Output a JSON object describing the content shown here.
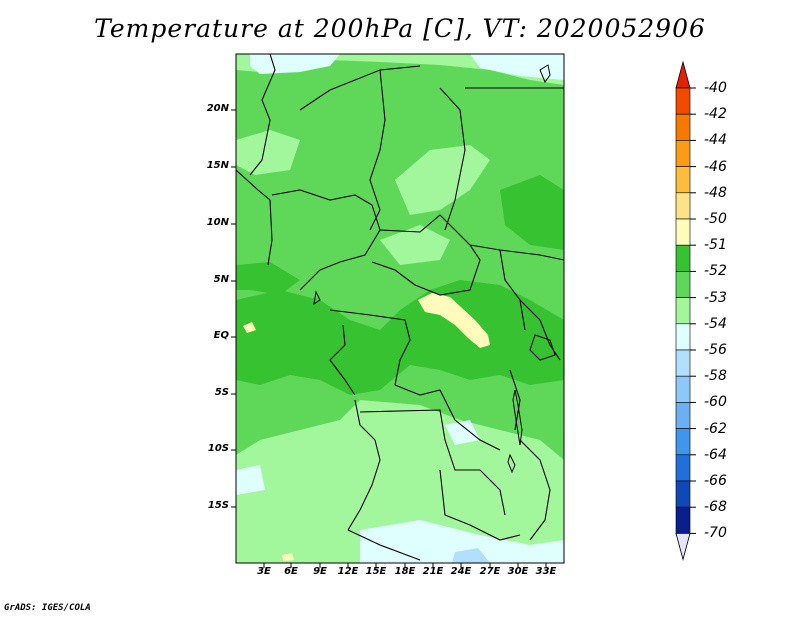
{
  "title": "Temperature at 200hPa [C], VT: 2020052906",
  "credit": "GrADS: IGES/COLA",
  "lat_labels": [
    "20N",
    "15N",
    "10N",
    "5N",
    "EQ",
    "5S",
    "10S",
    "15S"
  ],
  "lon_labels": [
    "3E",
    "6E",
    "9E",
    "12E",
    "15E",
    "18E",
    "21E",
    "24E",
    "27E",
    "30E",
    "33E"
  ],
  "colorbar": {
    "levels": [
      "-40",
      "-42",
      "-44",
      "-46",
      "-48",
      "-50",
      "-51",
      "-52",
      "-53",
      "-54",
      "-56",
      "-58",
      "-60",
      "-62",
      "-64",
      "-66",
      "-68",
      "-70"
    ],
    "colors": [
      "#e61f00",
      "#f24a00",
      "#f77a00",
      "#fc9c16",
      "#fcbd3c",
      "#fde387",
      "#fffcbb",
      "#37c232",
      "#5fd85a",
      "#a2f79c",
      "#dffffe",
      "#b3dfff",
      "#8fc7f9",
      "#6ab0f3",
      "#4095ec",
      "#1f6fdd",
      "#0d4ab7",
      "#0b1f8c",
      "#061061"
    ],
    "top_triangle_color": "#e61f00",
    "bottom_triangle_color": "#e7e4fd"
  },
  "map_colors": {
    "c52": "#37c232",
    "c53": "#5fd85a",
    "c54": "#a2f79c",
    "c56": "#dffffe",
    "c58": "#b3dfff",
    "c51": "#fffcbb",
    "border": "#000000"
  }
}
